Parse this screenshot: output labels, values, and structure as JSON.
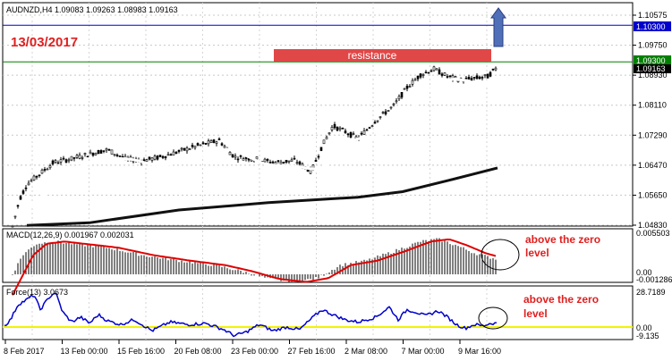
{
  "main_panel": {
    "header": "AUDNZD,H4  1.09083 1.09263 1.08983 1.09163",
    "date_label": "13/03/2017",
    "resistance_label": "resistance",
    "price_ticks": [
      "1.10575",
      "1.09750",
      "1.08930",
      "1.08110",
      "1.07290",
      "1.06470",
      "1.05650",
      "1.04830"
    ],
    "blue_line_value": "1.10300",
    "green_line_value": "1.09300",
    "current_price": "1.09163",
    "colors": {
      "blue_line": "#0000cc",
      "green_line": "#008000",
      "current_tag": "#000000",
      "resistance_box": "#e04848",
      "arrow": "#4f6fb8",
      "date_text": "#e02020",
      "fast_ma": "#ffffff",
      "slow_ma": "#111111"
    }
  },
  "macd_panel": {
    "header": "MACD(12,26,9) 0.001967 0.002031",
    "ticks": [
      "0.005503",
      "0.00",
      "-0.001286"
    ],
    "annotation_line1": "above the zero",
    "annotation_line2": "level",
    "colors": {
      "histogram": "#000000",
      "signal": "#e00000",
      "annotation": "#e02020"
    }
  },
  "force_panel": {
    "header": "Force(13) 3.0673",
    "ticks": [
      "28.7189",
      "0.00",
      "-9.135"
    ],
    "annotation_line1": "above the zero",
    "annotation_line2": "level",
    "colors": {
      "line": "#0000cc",
      "zero_line": "#f2f200",
      "annotation": "#e02020"
    }
  },
  "time_axis": {
    "labels": [
      "8 Feb 2017",
      "13 Feb 00:00",
      "15 Feb 16:00",
      "20 Feb 08:00",
      "23 Feb 00:00",
      "27 Feb 16:00",
      "2 Mar 08:00",
      "7 Mar 00:00",
      "9 Mar 16:00"
    ]
  }
}
